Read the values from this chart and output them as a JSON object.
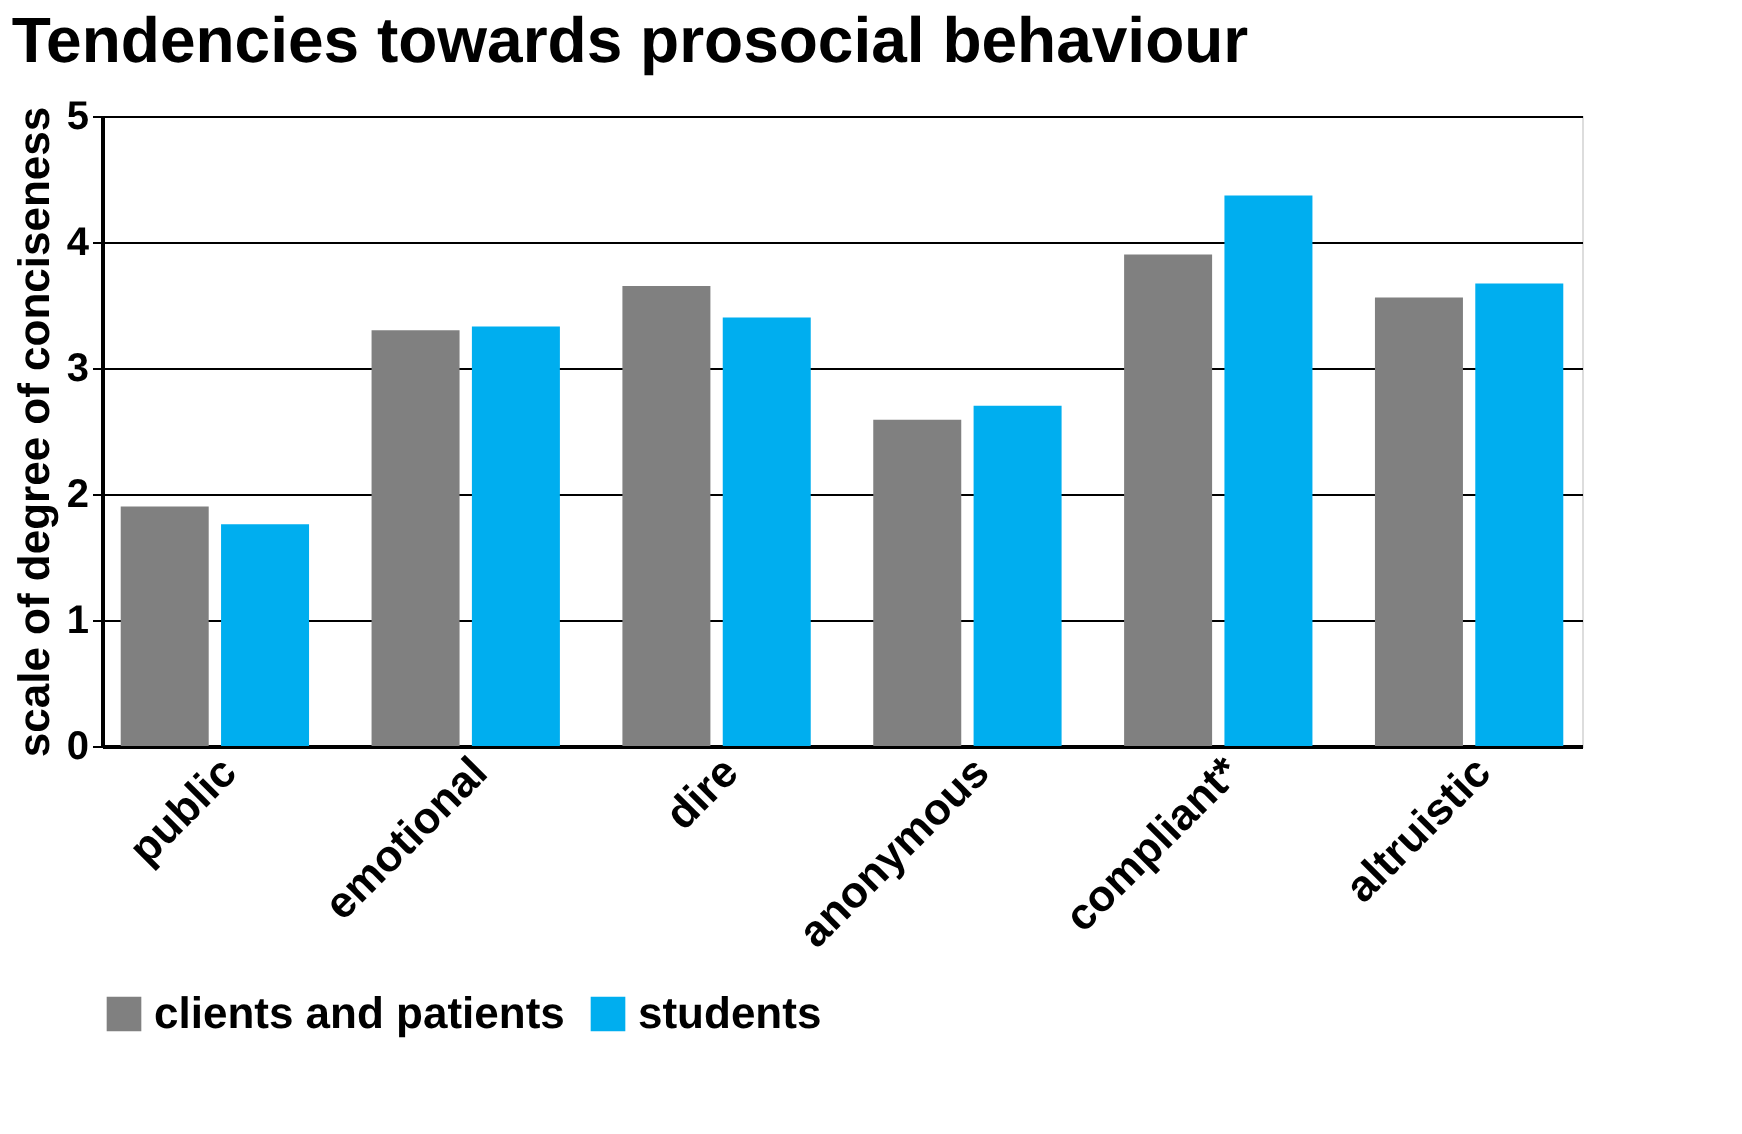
{
  "chart_data": {
    "type": "bar",
    "title": "Tendencies towards prosocial behaviour",
    "ylabel": "scale of degree of conciseness",
    "categories": [
      "public",
      "emotional",
      "dire",
      "anonymous",
      "compliant*",
      "altruistic"
    ],
    "series": [
      {
        "name": "clients and patients",
        "color": "#808080",
        "values": [
          1.9,
          3.3,
          3.65,
          2.59,
          3.9,
          3.56
        ]
      },
      {
        "name": "students",
        "color": "#00aeef",
        "values": [
          1.76,
          3.33,
          3.4,
          2.7,
          4.37,
          3.67
        ]
      }
    ],
    "ylim": [
      0,
      5
    ],
    "yticks": [
      0,
      1,
      2,
      3,
      4,
      5
    ],
    "grid": "y",
    "legend": "bottom"
  }
}
